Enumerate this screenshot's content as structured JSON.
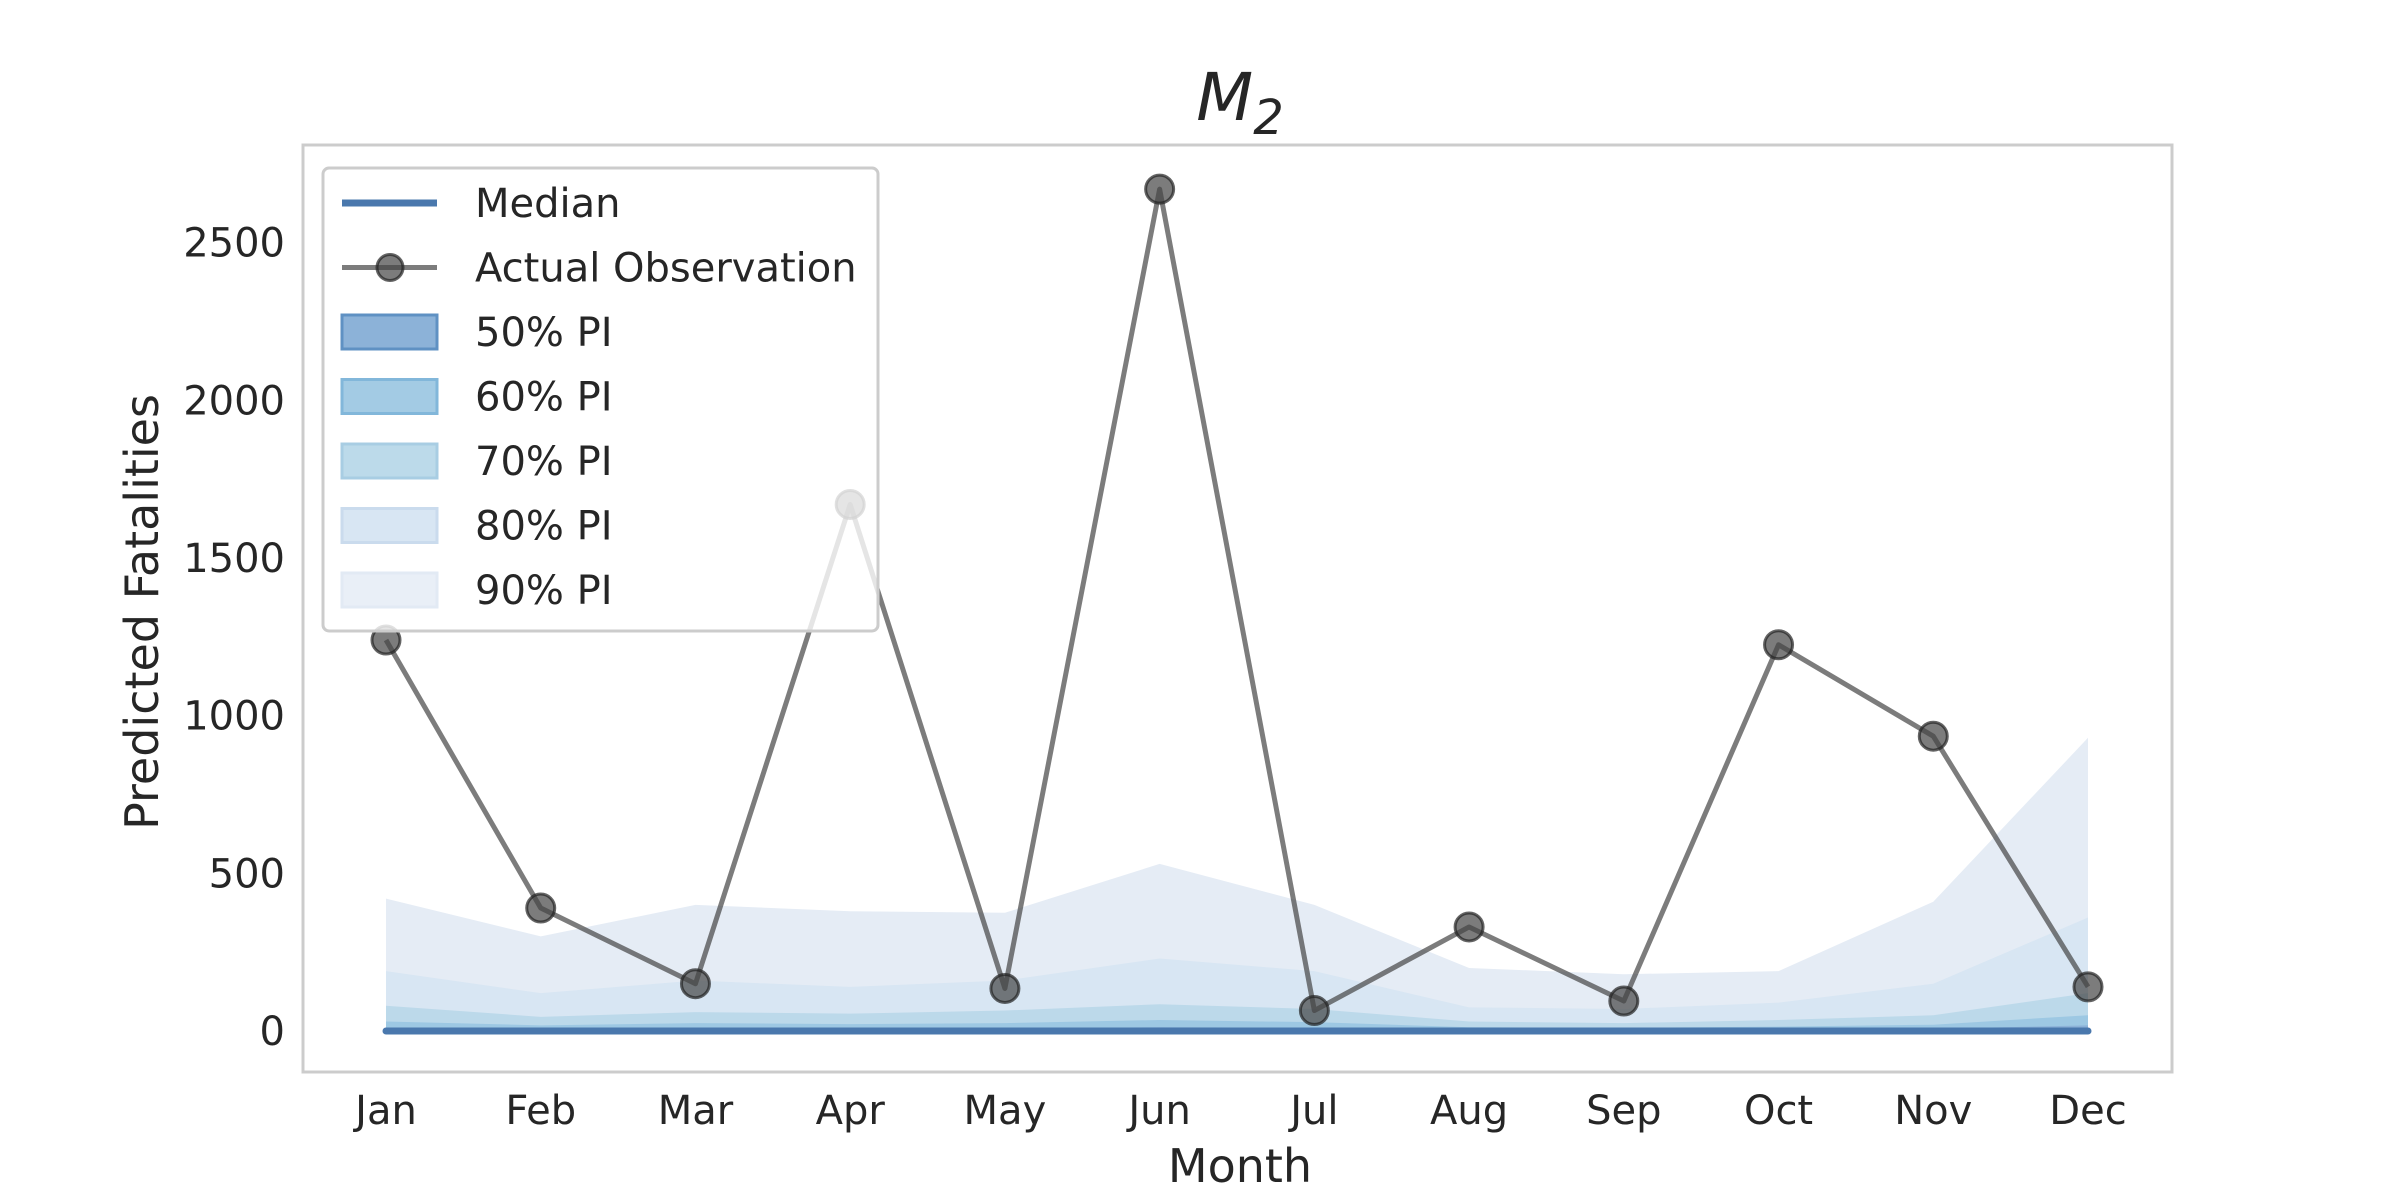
{
  "chart_data": {
    "type": "line",
    "title": {
      "main": "M",
      "subscript": "2"
    },
    "xlabel": "Month",
    "ylabel": "Predicted Fatalities",
    "categories": [
      "Jan",
      "Feb",
      "Mar",
      "Apr",
      "May",
      "Jun",
      "Jul",
      "Aug",
      "Sep",
      "Oct",
      "Nov",
      "Dec"
    ],
    "ylim": [
      -130,
      2810
    ],
    "yticks": [
      0,
      500,
      1000,
      1500,
      2000,
      2500
    ],
    "grid": false,
    "legend_position": "top-left",
    "series": [
      {
        "name": "Median",
        "values": [
          0,
          0,
          0,
          0,
          0,
          0,
          0,
          0,
          0,
          0,
          0,
          0
        ],
        "color": "#4a78ad"
      },
      {
        "name": "Actual Observation",
        "values": [
          1240,
          390,
          150,
          1670,
          135,
          2670,
          65,
          330,
          95,
          1225,
          935,
          140
        ],
        "color": "#444444"
      }
    ],
    "intervals": [
      {
        "name": "90% PI",
        "upper": [
          420,
          300,
          400,
          380,
          375,
          530,
          400,
          200,
          180,
          190,
          410,
          930
        ],
        "lower": [
          0,
          0,
          0,
          0,
          0,
          0,
          0,
          0,
          0,
          0,
          0,
          0
        ],
        "color": "#e5ecf5"
      },
      {
        "name": "80% PI",
        "upper": [
          190,
          120,
          160,
          140,
          160,
          230,
          190,
          75,
          70,
          90,
          150,
          360
        ],
        "lower": [
          0,
          0,
          0,
          0,
          0,
          0,
          0,
          0,
          0,
          0,
          0,
          0
        ],
        "color": "#d8e6f3"
      },
      {
        "name": "70% PI",
        "upper": [
          80,
          45,
          60,
          55,
          65,
          85,
          70,
          30,
          25,
          35,
          50,
          120
        ],
        "lower": [
          0,
          0,
          0,
          0,
          0,
          0,
          0,
          0,
          0,
          0,
          0,
          0
        ],
        "color": "#bcd9ea"
      },
      {
        "name": "60% PI",
        "upper": [
          30,
          18,
          25,
          22,
          25,
          35,
          28,
          12,
          10,
          14,
          20,
          50
        ],
        "lower": [
          0,
          0,
          0,
          0,
          0,
          0,
          0,
          0,
          0,
          0,
          0,
          0
        ],
        "color": "#9dc8e3"
      },
      {
        "name": "50% PI",
        "upper": [
          10,
          6,
          8,
          7,
          8,
          12,
          10,
          4,
          3,
          5,
          7,
          18
        ],
        "lower": [
          0,
          0,
          0,
          0,
          0,
          0,
          0,
          0,
          0,
          0,
          0,
          0
        ],
        "color": "#8cb2d8"
      }
    ],
    "legend": [
      {
        "label": "Median",
        "kind": "line",
        "color": "#4a78ad"
      },
      {
        "label": "Actual Observation",
        "kind": "marker-line",
        "color": "#444444"
      },
      {
        "label": "50% PI",
        "kind": "patch",
        "color": "#8cb2d8",
        "edge": "#5f91c3"
      },
      {
        "label": "60% PI",
        "kind": "patch",
        "color": "#a3cbe4",
        "edge": "#82b7da"
      },
      {
        "label": "70% PI",
        "kind": "patch",
        "color": "#bcdaea",
        "edge": "#a8cde3"
      },
      {
        "label": "80% PI",
        "kind": "patch",
        "color": "#d8e6f3",
        "edge": "#cadbed"
      },
      {
        "label": "90% PI",
        "kind": "patch",
        "color": "#e9eff7",
        "edge": "#e2eaf4"
      }
    ]
  }
}
